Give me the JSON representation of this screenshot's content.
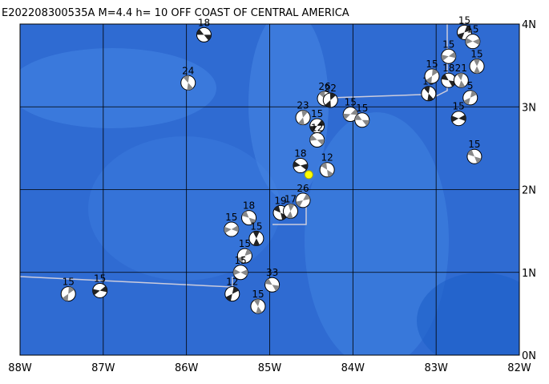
{
  "chart_data": {
    "type": "map",
    "title": "E202208300535A  M=4.4  h= 10 OFF COAST OF CENTRAL AMERICA",
    "xlim": [
      -88,
      -82
    ],
    "ylim": [
      0,
      4
    ],
    "xticks": [
      {
        "value": -88,
        "label": "88W"
      },
      {
        "value": -87,
        "label": "87W"
      },
      {
        "value": -86,
        "label": "86W"
      },
      {
        "value": -85,
        "label": "85W"
      },
      {
        "value": -84,
        "label": "84W"
      },
      {
        "value": -83,
        "label": "83W"
      },
      {
        "value": -82,
        "label": "82W"
      }
    ],
    "yticks": [
      {
        "value": 0,
        "label": "0N"
      },
      {
        "value": 1,
        "label": "1N"
      },
      {
        "value": 2,
        "label": "2N"
      },
      {
        "value": 3,
        "label": "3N"
      },
      {
        "value": 4,
        "label": "4N"
      }
    ],
    "grid": true,
    "epicenter": {
      "lon": -84.53,
      "lat": 2.18
    },
    "events": [
      {
        "lon": -85.79,
        "lat": 3.87,
        "label": "18"
      },
      {
        "lon": -85.98,
        "lat": 3.29,
        "label": "24"
      },
      {
        "lon": -87.42,
        "lat": 0.74,
        "label": "15"
      },
      {
        "lon": -87.04,
        "lat": 0.78,
        "label": "15"
      },
      {
        "lon": -84.97,
        "lat": 0.85,
        "label": "33"
      },
      {
        "lon": -85.14,
        "lat": 0.59,
        "label": "15"
      },
      {
        "lon": -85.45,
        "lat": 0.74,
        "label": "12"
      },
      {
        "lon": -85.46,
        "lat": 1.52,
        "label": "15"
      },
      {
        "lon": -85.25,
        "lat": 1.66,
        "label": "18"
      },
      {
        "lon": -85.16,
        "lat": 1.41,
        "label": "15"
      },
      {
        "lon": -85.3,
        "lat": 1.2,
        "label": "15"
      },
      {
        "lon": -85.35,
        "lat": 1.0,
        "label": "15"
      },
      {
        "lon": -84.87,
        "lat": 1.72,
        "label": "19"
      },
      {
        "lon": -84.75,
        "lat": 1.74,
        "label": "17"
      },
      {
        "lon": -84.6,
        "lat": 1.87,
        "label": "26"
      },
      {
        "lon": -84.63,
        "lat": 2.29,
        "label": "18"
      },
      {
        "lon": -84.31,
        "lat": 2.24,
        "label": "12"
      },
      {
        "lon": -84.6,
        "lat": 2.87,
        "label": "23"
      },
      {
        "lon": -84.43,
        "lat": 2.77,
        "label": "15"
      },
      {
        "lon": -84.43,
        "lat": 2.6,
        "label": "12"
      },
      {
        "lon": -84.34,
        "lat": 3.1,
        "label": "26"
      },
      {
        "lon": -84.27,
        "lat": 3.08,
        "label": "22"
      },
      {
        "lon": -84.03,
        "lat": 2.91,
        "label": "15"
      },
      {
        "lon": -83.89,
        "lat": 2.84,
        "label": "15"
      },
      {
        "lon": -83.09,
        "lat": 3.16,
        "label": "15"
      },
      {
        "lon": -83.05,
        "lat": 3.37,
        "label": "15"
      },
      {
        "lon": -82.85,
        "lat": 3.61,
        "label": "15"
      },
      {
        "lon": -82.85,
        "lat": 3.32,
        "label": "18"
      },
      {
        "lon": -82.7,
        "lat": 3.32,
        "label": "21"
      },
      {
        "lon": -82.59,
        "lat": 3.11,
        "label": "5"
      },
      {
        "lon": -82.73,
        "lat": 2.86,
        "label": "15"
      },
      {
        "lon": -82.54,
        "lat": 2.4,
        "label": "15"
      },
      {
        "lon": -82.51,
        "lat": 3.49,
        "label": "15"
      },
      {
        "lon": -82.66,
        "lat": 3.9,
        "label": "15"
      },
      {
        "lon": -82.56,
        "lat": 3.79,
        "label": "15"
      }
    ]
  }
}
